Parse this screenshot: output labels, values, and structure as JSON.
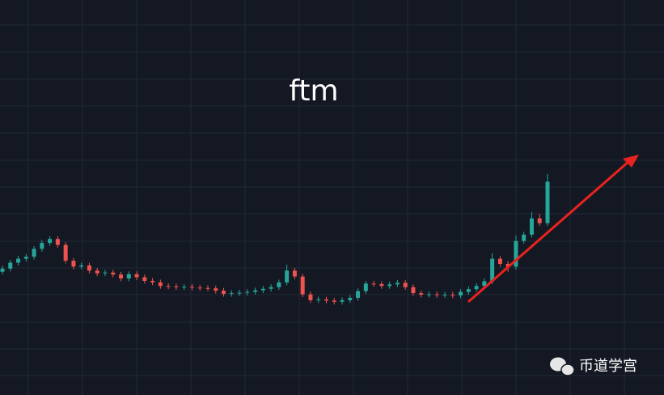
{
  "chart_data": {
    "type": "candlestick",
    "title": "ftm",
    "watermark": "币道学宫",
    "up_color": "#26a69a",
    "down_color": "#ef5350",
    "ylim": [
      0,
      100
    ],
    "open": [
      31.2,
      32,
      33.5,
      34.5,
      35,
      37,
      38.5,
      39.5,
      38,
      34,
      32.5,
      32.8,
      31.5,
      30.8,
      31,
      30.5,
      29.5,
      30.6,
      29.8,
      28.9,
      28.5,
      27.6,
      27.5,
      27.3,
      27.4,
      27.2,
      27.1,
      27,
      26.4,
      25.6,
      25.8,
      25.9,
      26.1,
      26.5,
      26.9,
      27.3,
      28.5,
      31.5,
      30,
      25.5,
      24,
      24.2,
      23.9,
      23.6,
      24,
      24.6,
      26.3,
      28.2,
      28.1,
      27.6,
      28,
      28.4,
      27.3,
      25.8,
      25.4,
      25.5,
      25.3,
      25.4,
      25.2,
      26.1,
      26.8,
      27.6,
      28.8,
      34.5,
      33.2,
      32.5,
      39,
      40.6,
      44.7,
      43.5
    ],
    "high": [
      32.7,
      34.2,
      35.2,
      35.7,
      37.7,
      39.2,
      40.2,
      40.2,
      38.7,
      34.7,
      33.5,
      33.5,
      32.2,
      31.7,
      31.7,
      31.2,
      31.3,
      31.3,
      30.5,
      29.6,
      29.2,
      28.3,
      28.2,
      28.1,
      28.1,
      27.9,
      27.8,
      27.7,
      27.1,
      26.5,
      26.6,
      26.8,
      27.2,
      27.6,
      28,
      29.2,
      33,
      32.2,
      30.7,
      26.2,
      24.9,
      24.9,
      24.6,
      24.7,
      25.3,
      27,
      28.9,
      28.9,
      28.8,
      28.7,
      29.1,
      29.1,
      28,
      26.5,
      26.2,
      26.2,
      26.1,
      26.1,
      26.8,
      27.5,
      28.3,
      29.5,
      35.9,
      35.2,
      33.9,
      40.4,
      41.3,
      46.3,
      45.9,
      56
    ],
    "low": [
      30.5,
      31.3,
      32.8,
      33.8,
      34.3,
      36.3,
      37.8,
      37.3,
      33.3,
      31.8,
      31.8,
      30.8,
      30.1,
      30.1,
      29.8,
      28.8,
      28.8,
      29.1,
      28.2,
      27.8,
      26.9,
      26.8,
      26.6,
      26.6,
      26.5,
      26.4,
      26.3,
      25.7,
      24.9,
      24.9,
      25.1,
      25.2,
      25.4,
      25.8,
      26.2,
      26.6,
      27.8,
      29.3,
      24.8,
      23.3,
      23.3,
      23.2,
      22.9,
      22.9,
      23.3,
      23.9,
      25.6,
      27.4,
      26.9,
      26.9,
      27.3,
      26.6,
      25.1,
      24.7,
      24.7,
      24.6,
      24.6,
      24.5,
      24.5,
      25.4,
      26.1,
      26.9,
      28.1,
      32.5,
      31.2,
      31.8,
      38.3,
      39.9,
      42.8,
      42.8
    ],
    "close": [
      32,
      33.5,
      34.5,
      35,
      37,
      38.5,
      39.5,
      38,
      34,
      32.5,
      32.8,
      31.5,
      30.8,
      31,
      30.5,
      29.5,
      30.6,
      29.8,
      28.9,
      28.5,
      27.6,
      27.5,
      27.3,
      27.4,
      27.2,
      27.1,
      27,
      26.4,
      25.6,
      25.8,
      25.9,
      26.1,
      26.5,
      26.9,
      27.3,
      28.5,
      31.5,
      30,
      25.5,
      24,
      24.2,
      23.9,
      23.6,
      24,
      24.6,
      26.3,
      28.2,
      28.1,
      27.6,
      28,
      28.4,
      27.3,
      25.8,
      25.4,
      25.5,
      25.3,
      25.4,
      25.2,
      26.1,
      26.8,
      27.6,
      28.8,
      34.5,
      33.2,
      32.5,
      39,
      40.6,
      44.7,
      43.5,
      54
    ]
  }
}
